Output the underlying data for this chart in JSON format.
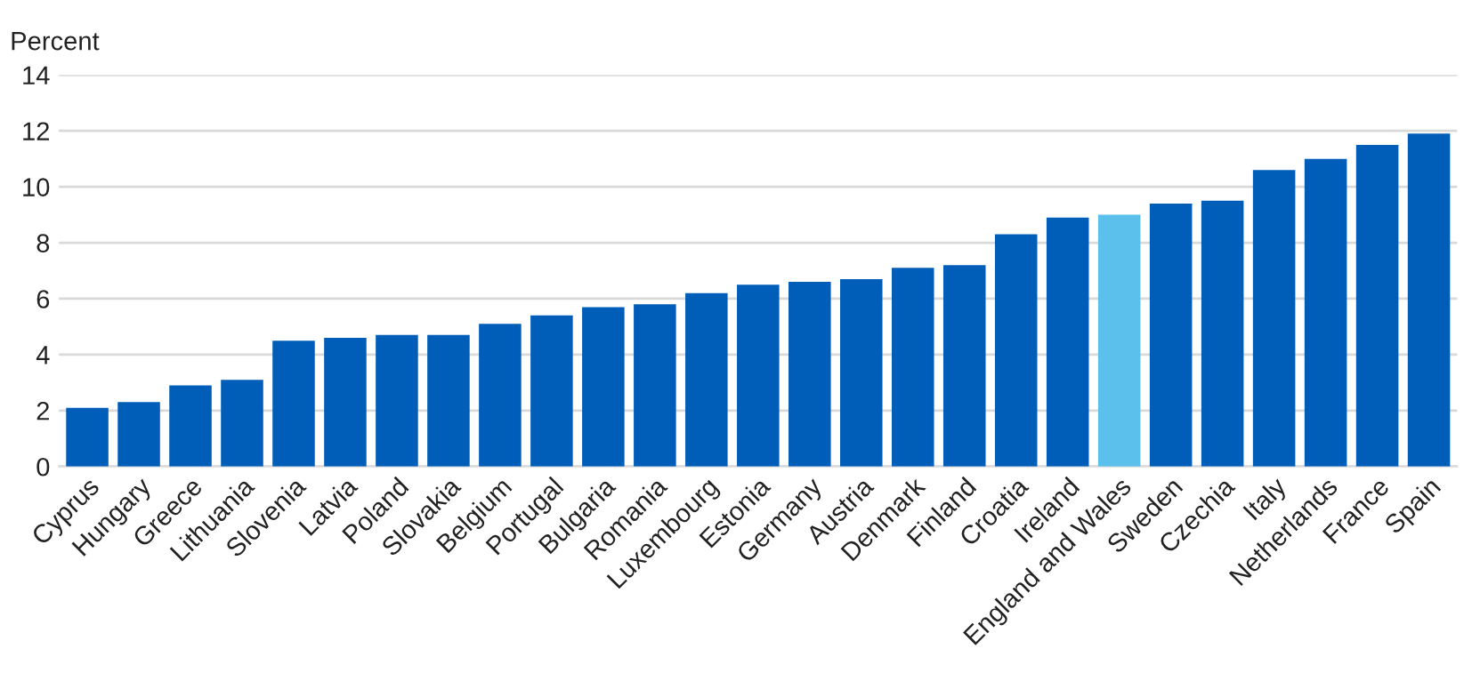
{
  "chart_data": {
    "type": "bar",
    "ylabel": "Percent",
    "categories": [
      "Cyprus",
      "Hungary",
      "Greece",
      "Lithuania",
      "Slovenia",
      "Latvia",
      "Poland",
      "Slovakia",
      "Belgium",
      "Portugal",
      "Bulgaria",
      "Romania",
      "Luxembourg",
      "Estonia",
      "Germany",
      "Austria",
      "Denmark",
      "Finland",
      "Croatia",
      "Ireland",
      "England and Wales",
      "Sweden",
      "Czechia",
      "Italy",
      "Netherlands",
      "France",
      "Spain"
    ],
    "values": [
      2.1,
      2.3,
      2.9,
      3.1,
      4.5,
      4.6,
      4.7,
      4.7,
      5.1,
      5.4,
      5.7,
      5.8,
      6.2,
      6.5,
      6.6,
      6.7,
      7.1,
      7.2,
      8.3,
      8.9,
      9.0,
      9.4,
      9.5,
      10.6,
      11.0,
      11.5,
      11.9
    ],
    "colors": [
      "#005eb8",
      "#005eb8",
      "#005eb8",
      "#005eb8",
      "#005eb8",
      "#005eb8",
      "#005eb8",
      "#005eb8",
      "#005eb8",
      "#005eb8",
      "#005eb8",
      "#005eb8",
      "#005eb8",
      "#005eb8",
      "#005eb8",
      "#005eb8",
      "#005eb8",
      "#005eb8",
      "#005eb8",
      "#005eb8",
      "#5bc0eb",
      "#005eb8",
      "#005eb8",
      "#005eb8",
      "#005eb8",
      "#005eb8",
      "#005eb8"
    ],
    "ylim": [
      0,
      14
    ],
    "yticks": [
      0,
      2,
      4,
      6,
      8,
      10,
      12,
      14
    ],
    "grid": "y"
  }
}
